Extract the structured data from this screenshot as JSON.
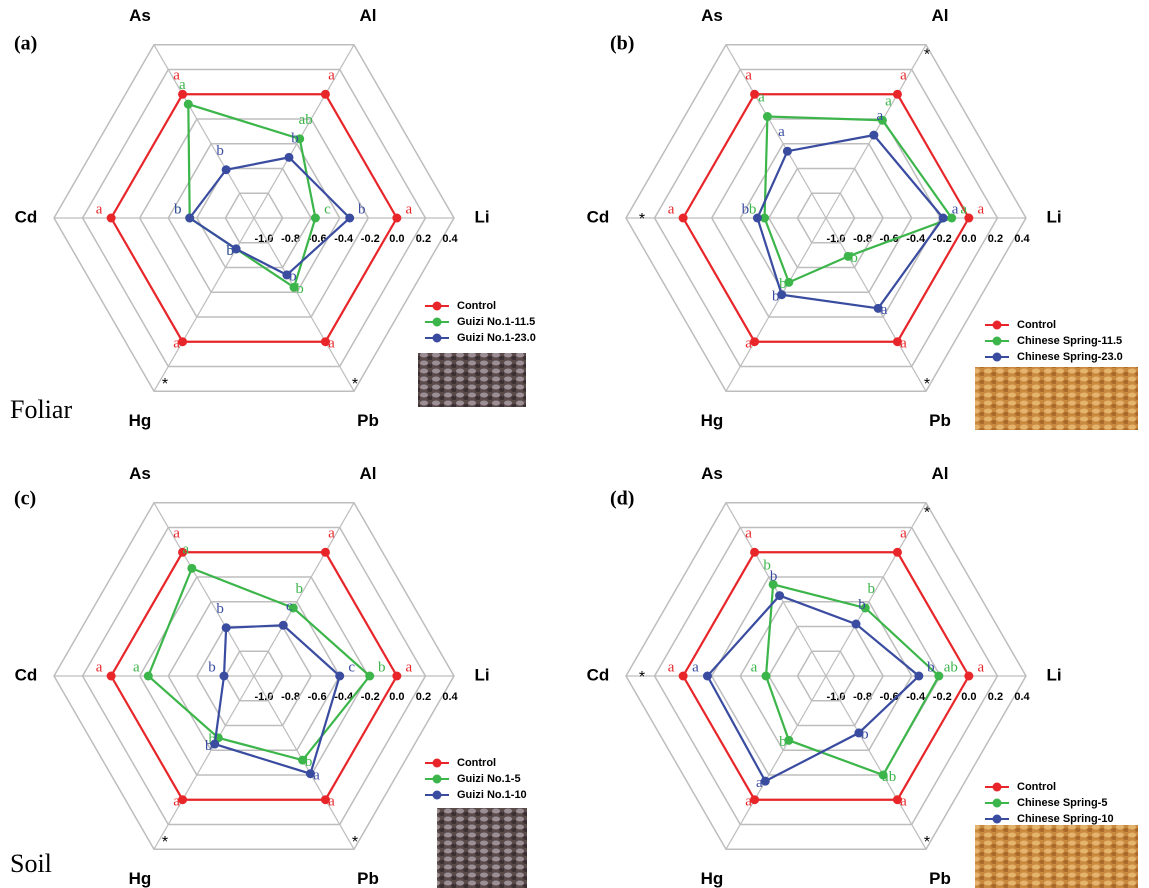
{
  "chart_data": [
    {
      "type": "radar",
      "label": "(a)",
      "caption": "Foliar",
      "categories": [
        "Li",
        "Al",
        "As",
        "Cd",
        "Hg",
        "Pb"
      ],
      "rlim": [
        -1,
        0.4
      ],
      "rticks": [
        {
          "value": -1,
          "label": "-1.0"
        },
        -0.8,
        -0.6,
        -0.4,
        -0.2,
        {
          "value": 0,
          "label": "0.0"
        },
        0.2,
        0.4
      ],
      "significance": [
        null,
        null,
        null,
        null,
        "*",
        "*"
      ],
      "series": [
        {
          "name": "Control",
          "color": "#e8262a",
          "values": [
            0,
            0,
            0,
            0,
            0,
            0
          ],
          "letters": [
            "a",
            "a",
            "a",
            "a",
            "a",
            "a"
          ]
        },
        {
          "name": "Guizi No.1-11.5",
          "color": "#3cb54a",
          "values": [
            -0.57,
            -0.36,
            -0.08,
            -0.55,
            -0.75,
            -0.44
          ],
          "letters": [
            "c",
            "ab",
            "a",
            "b",
            "b",
            "b"
          ]
        },
        {
          "name": "Guizi No.1-23.0",
          "color": "#3a4ca0",
          "values": [
            -0.33,
            -0.51,
            -0.61,
            -0.55,
            -0.75,
            -0.54
          ],
          "letters": [
            "b",
            "b",
            "b",
            "b",
            "b",
            "b"
          ]
        }
      ]
    },
    {
      "type": "radar",
      "label": "(b)",
      "categories": [
        "Li",
        "Al",
        "As",
        "Cd",
        "Hg",
        "Pb"
      ],
      "rlim": [
        -1,
        0.4
      ],
      "rticks": [
        {
          "value": -1,
          "label": "-1.0"
        },
        -0.8,
        -0.6,
        -0.4,
        -0.2,
        {
          "value": 0,
          "label": "0.0"
        },
        0.2,
        0.4
      ],
      "significance": [
        null,
        "*",
        null,
        "*",
        null,
        "*"
      ],
      "series": [
        {
          "name": "Control",
          "color": "#e8262a",
          "values": [
            0,
            0,
            0,
            0,
            0,
            0
          ],
          "letters": [
            "a",
            "a",
            "a",
            "a",
            "a",
            "a"
          ]
        },
        {
          "name": "Chinese Spring-11.5",
          "color": "#3cb54a",
          "values": [
            -0.12,
            -0.21,
            -0.18,
            -0.57,
            -0.48,
            -0.69
          ],
          "letters": [
            "a",
            "a",
            "a",
            "b",
            "b",
            "b"
          ]
        },
        {
          "name": "Chinese Spring-23.0",
          "color": "#3a4ca0",
          "values": [
            -0.18,
            -0.33,
            -0.46,
            -0.52,
            -0.38,
            -0.27
          ],
          "letters": [
            "a",
            "a",
            "a",
            "b",
            "b",
            "a"
          ]
        }
      ]
    },
    {
      "type": "radar",
      "label": "(c)",
      "caption": "Soil",
      "categories": [
        "Li",
        "Al",
        "As",
        "Cd",
        "Hg",
        "Pb"
      ],
      "rlim": [
        -1,
        0.4
      ],
      "rticks": [
        {
          "value": -1,
          "label": "-1.0"
        },
        -0.8,
        -0.6,
        -0.4,
        -0.2,
        {
          "value": 0,
          "label": "0.0"
        },
        0.2,
        0.4
      ],
      "significance": [
        null,
        null,
        null,
        null,
        "*",
        "*"
      ],
      "series": [
        {
          "name": "Control",
          "color": "#e8262a",
          "values": [
            0,
            0,
            0,
            0,
            0,
            0
          ],
          "letters": [
            "a",
            "a",
            "a",
            "a",
            "a",
            "a"
          ]
        },
        {
          "name": "Guizi No.1-5",
          "color": "#3cb54a",
          "values": [
            -0.19,
            -0.45,
            -0.13,
            -0.26,
            -0.5,
            -0.32
          ],
          "letters": [
            "b",
            "b",
            "a",
            "a",
            "b",
            "b"
          ]
        },
        {
          "name": "Guizi No.1-10",
          "color": "#3a4ca0",
          "values": [
            -0.4,
            -0.59,
            -0.61,
            -0.79,
            -0.45,
            -0.21
          ],
          "letters": [
            "c",
            "c",
            "b",
            "b",
            "b",
            "a"
          ]
        }
      ]
    },
    {
      "type": "radar",
      "label": "(d)",
      "categories": [
        "Li",
        "Al",
        "As",
        "Cd",
        "Hg",
        "Pb"
      ],
      "rlim": [
        -1,
        0.4
      ],
      "rticks": [
        {
          "value": -1,
          "label": "-1.0"
        },
        -0.8,
        -0.6,
        -0.4,
        -0.2,
        {
          "value": 0,
          "label": "0.0"
        },
        0.2,
        0.4
      ],
      "significance": [
        null,
        "*",
        null,
        "*",
        null,
        "*"
      ],
      "series": [
        {
          "name": "Control",
          "color": "#e8262a",
          "values": [
            0,
            0,
            0,
            0,
            0,
            0
          ],
          "letters": [
            "a",
            "a",
            "a",
            "a",
            "a",
            "a"
          ]
        },
        {
          "name": "Chinese Spring-5",
          "color": "#3cb54a",
          "values": [
            -0.21,
            -0.45,
            -0.26,
            -0.58,
            -0.48,
            -0.2
          ],
          "letters": [
            "ab",
            "b",
            "b",
            "a",
            "b",
            "ab"
          ]
        },
        {
          "name": "Chinese Spring-10",
          "color": "#3a4ca0",
          "values": [
            -0.35,
            -0.58,
            -0.35,
            -0.17,
            -0.15,
            -0.54
          ],
          "letters": [
            "b",
            "b",
            "b",
            "a",
            "a",
            "b"
          ]
        }
      ]
    }
  ]
}
